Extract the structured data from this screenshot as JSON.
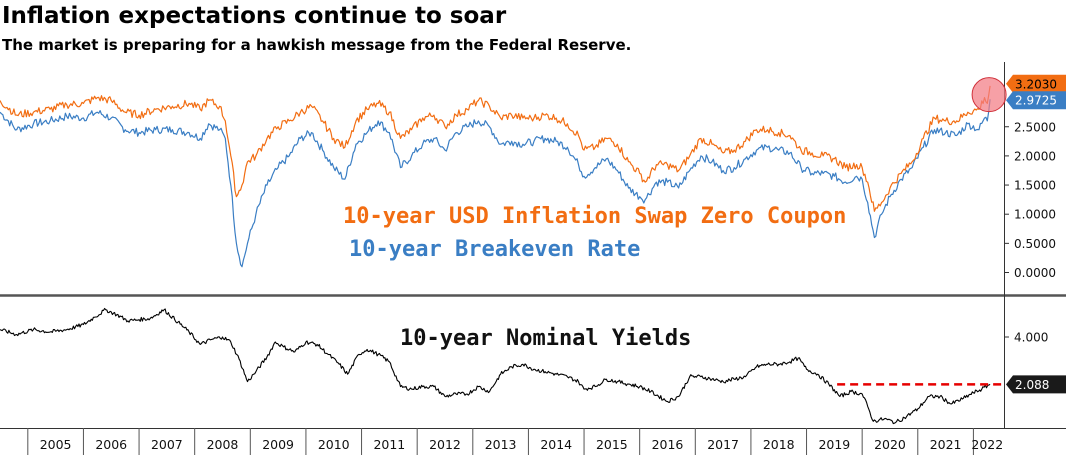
{
  "header": {
    "title": "Inflation expectations continue to soar",
    "subtitle": "The market is preparing for a hawkish message from the Federal Reserve."
  },
  "colors": {
    "swap": "#f26d12",
    "breakeven": "#3a7ec4",
    "nominal": "#000000",
    "highlight": "#f27c84",
    "dashed": "#e60000"
  },
  "chart_data": [
    {
      "type": "line",
      "panel": "upper",
      "x_range": [
        2004.5,
        2022.55
      ],
      "ylim": [
        -0.3,
        3.55
      ],
      "yticks": [
        "0.0000",
        "0.5000",
        "1.0000",
        "1.5000",
        "2.0000",
        "2.5000"
      ],
      "annotations": [
        {
          "text": "10-year USD Inflation Swap Zero Coupon",
          "color": "#f26d12"
        },
        {
          "text": "10-year Breakeven Rate",
          "color": "#3a7ec4"
        }
      ],
      "series": [
        {
          "key": "swap",
          "last_label": "3.2030",
          "points": [
            [
              2004.5,
              2.95
            ],
            [
              2004.8,
              2.7
            ],
            [
              2005.1,
              2.75
            ],
            [
              2005.4,
              2.8
            ],
            [
              2005.7,
              2.88
            ],
            [
              2006.0,
              2.9
            ],
            [
              2006.25,
              3.0
            ],
            [
              2006.5,
              2.95
            ],
            [
              2006.75,
              2.75
            ],
            [
              2007.0,
              2.7
            ],
            [
              2007.3,
              2.8
            ],
            [
              2007.6,
              2.85
            ],
            [
              2007.9,
              2.9
            ],
            [
              2008.1,
              2.8
            ],
            [
              2008.25,
              2.95
            ],
            [
              2008.45,
              2.85
            ],
            [
              2008.55,
              2.6
            ],
            [
              2008.65,
              2.0
            ],
            [
              2008.75,
              1.3
            ],
            [
              2008.85,
              1.5
            ],
            [
              2008.95,
              1.9
            ],
            [
              2009.1,
              2.0
            ],
            [
              2009.3,
              2.3
            ],
            [
              2009.5,
              2.5
            ],
            [
              2009.7,
              2.6
            ],
            [
              2009.9,
              2.75
            ],
            [
              2010.1,
              2.85
            ],
            [
              2010.3,
              2.6
            ],
            [
              2010.5,
              2.3
            ],
            [
              2010.7,
              2.15
            ],
            [
              2010.9,
              2.6
            ],
            [
              2011.1,
              2.8
            ],
            [
              2011.3,
              2.9
            ],
            [
              2011.5,
              2.75
            ],
            [
              2011.7,
              2.3
            ],
            [
              2011.9,
              2.45
            ],
            [
              2012.1,
              2.65
            ],
            [
              2012.3,
              2.7
            ],
            [
              2012.5,
              2.5
            ],
            [
              2012.7,
              2.7
            ],
            [
              2012.9,
              2.8
            ],
            [
              2013.1,
              2.95
            ],
            [
              2013.3,
              2.85
            ],
            [
              2013.5,
              2.65
            ],
            [
              2013.7,
              2.7
            ],
            [
              2013.9,
              2.65
            ],
            [
              2014.1,
              2.65
            ],
            [
              2014.3,
              2.7
            ],
            [
              2014.5,
              2.65
            ],
            [
              2014.7,
              2.55
            ],
            [
              2014.9,
              2.35
            ],
            [
              2015.0,
              2.1
            ],
            [
              2015.2,
              2.15
            ],
            [
              2015.4,
              2.3
            ],
            [
              2015.6,
              2.2
            ],
            [
              2015.8,
              1.9
            ],
            [
              2016.0,
              1.7
            ],
            [
              2016.1,
              1.55
            ],
            [
              2016.3,
              1.85
            ],
            [
              2016.5,
              1.85
            ],
            [
              2016.7,
              1.75
            ],
            [
              2016.9,
              2.0
            ],
            [
              2017.1,
              2.3
            ],
            [
              2017.3,
              2.2
            ],
            [
              2017.5,
              2.05
            ],
            [
              2017.7,
              2.1
            ],
            [
              2017.9,
              2.25
            ],
            [
              2018.1,
              2.45
            ],
            [
              2018.3,
              2.45
            ],
            [
              2018.5,
              2.4
            ],
            [
              2018.7,
              2.35
            ],
            [
              2018.9,
              2.1
            ],
            [
              2019.1,
              2.05
            ],
            [
              2019.3,
              2.0
            ],
            [
              2019.5,
              1.95
            ],
            [
              2019.7,
              1.8
            ],
            [
              2019.9,
              1.85
            ],
            [
              2020.0,
              1.8
            ],
            [
              2020.1,
              1.55
            ],
            [
              2020.22,
              1.05
            ],
            [
              2020.35,
              1.2
            ],
            [
              2020.5,
              1.45
            ],
            [
              2020.7,
              1.7
            ],
            [
              2020.9,
              1.9
            ],
            [
              2021.1,
              2.3
            ],
            [
              2021.3,
              2.65
            ],
            [
              2021.5,
              2.6
            ],
            [
              2021.7,
              2.6
            ],
            [
              2021.9,
              2.75
            ],
            [
              2022.1,
              2.8
            ],
            [
              2022.2,
              3.0
            ],
            [
              2022.25,
              2.9
            ],
            [
              2022.3,
              3.2
            ]
          ]
        },
        {
          "key": "breakeven",
          "last_label": "2.9725",
          "points": [
            [
              2004.5,
              2.75
            ],
            [
              2004.8,
              2.45
            ],
            [
              2005.1,
              2.55
            ],
            [
              2005.4,
              2.6
            ],
            [
              2005.7,
              2.68
            ],
            [
              2006.0,
              2.65
            ],
            [
              2006.25,
              2.75
            ],
            [
              2006.5,
              2.65
            ],
            [
              2006.75,
              2.45
            ],
            [
              2007.0,
              2.4
            ],
            [
              2007.3,
              2.45
            ],
            [
              2007.6,
              2.45
            ],
            [
              2007.9,
              2.4
            ],
            [
              2008.1,
              2.3
            ],
            [
              2008.25,
              2.55
            ],
            [
              2008.45,
              2.45
            ],
            [
              2008.55,
              2.3
            ],
            [
              2008.65,
              1.5
            ],
            [
              2008.75,
              0.5
            ],
            [
              2008.85,
              0.1
            ],
            [
              2008.95,
              0.5
            ],
            [
              2009.1,
              1.0
            ],
            [
              2009.3,
              1.5
            ],
            [
              2009.5,
              1.8
            ],
            [
              2009.7,
              2.0
            ],
            [
              2009.9,
              2.3
            ],
            [
              2010.1,
              2.4
            ],
            [
              2010.3,
              2.1
            ],
            [
              2010.5,
              1.8
            ],
            [
              2010.7,
              1.6
            ],
            [
              2010.9,
              2.2
            ],
            [
              2011.1,
              2.4
            ],
            [
              2011.3,
              2.6
            ],
            [
              2011.5,
              2.4
            ],
            [
              2011.7,
              1.8
            ],
            [
              2011.9,
              2.0
            ],
            [
              2012.1,
              2.2
            ],
            [
              2012.3,
              2.3
            ],
            [
              2012.5,
              2.1
            ],
            [
              2012.7,
              2.4
            ],
            [
              2012.9,
              2.5
            ],
            [
              2013.1,
              2.6
            ],
            [
              2013.3,
              2.5
            ],
            [
              2013.5,
              2.2
            ],
            [
              2013.7,
              2.25
            ],
            [
              2013.9,
              2.2
            ],
            [
              2014.1,
              2.25
            ],
            [
              2014.3,
              2.3
            ],
            [
              2014.5,
              2.25
            ],
            [
              2014.7,
              2.15
            ],
            [
              2014.9,
              1.85
            ],
            [
              2015.0,
              1.65
            ],
            [
              2015.2,
              1.8
            ],
            [
              2015.4,
              1.95
            ],
            [
              2015.6,
              1.75
            ],
            [
              2015.8,
              1.45
            ],
            [
              2016.0,
              1.3
            ],
            [
              2016.1,
              1.25
            ],
            [
              2016.3,
              1.55
            ],
            [
              2016.5,
              1.55
            ],
            [
              2016.7,
              1.45
            ],
            [
              2016.9,
              1.75
            ],
            [
              2017.1,
              2.0
            ],
            [
              2017.3,
              1.9
            ],
            [
              2017.5,
              1.75
            ],
            [
              2017.7,
              1.8
            ],
            [
              2017.9,
              1.95
            ],
            [
              2018.1,
              2.1
            ],
            [
              2018.3,
              2.15
            ],
            [
              2018.5,
              2.1
            ],
            [
              2018.7,
              2.05
            ],
            [
              2018.9,
              1.8
            ],
            [
              2019.1,
              1.7
            ],
            [
              2019.3,
              1.7
            ],
            [
              2019.5,
              1.65
            ],
            [
              2019.7,
              1.55
            ],
            [
              2019.9,
              1.65
            ],
            [
              2020.0,
              1.6
            ],
            [
              2020.1,
              1.2
            ],
            [
              2020.22,
              0.6
            ],
            [
              2020.35,
              1.0
            ],
            [
              2020.5,
              1.3
            ],
            [
              2020.7,
              1.6
            ],
            [
              2020.9,
              1.8
            ],
            [
              2021.1,
              2.15
            ],
            [
              2021.3,
              2.45
            ],
            [
              2021.5,
              2.4
            ],
            [
              2021.7,
              2.35
            ],
            [
              2021.9,
              2.55
            ],
            [
              2022.1,
              2.45
            ],
            [
              2022.2,
              2.65
            ],
            [
              2022.25,
              2.6
            ],
            [
              2022.3,
              2.97
            ]
          ]
        }
      ]
    },
    {
      "type": "line",
      "panel": "lower",
      "annotation": "10-year Nominal Yields",
      "ylim": [
        0.3,
        5.6
      ],
      "yticks": [
        "4.000"
      ],
      "last_label": "2.088",
      "dashed_level": 2.088,
      "dashed_from_x": 2019.55,
      "x_labels": [
        "2005",
        "2006",
        "2007",
        "2008",
        "2009",
        "2010",
        "2011",
        "2012",
        "2013",
        "2014",
        "2015",
        "2016",
        "2017",
        "2018",
        "2019",
        "2020",
        "2021",
        "2022"
      ],
      "points": [
        [
          2004.5,
          4.3
        ],
        [
          2004.8,
          4.1
        ],
        [
          2005.1,
          4.3
        ],
        [
          2005.4,
          4.2
        ],
        [
          2005.7,
          4.3
        ],
        [
          2006.0,
          4.5
        ],
        [
          2006.2,
          4.8
        ],
        [
          2006.4,
          5.1
        ],
        [
          2006.6,
          4.9
        ],
        [
          2006.8,
          4.65
        ],
        [
          2007.0,
          4.7
        ],
        [
          2007.2,
          4.75
        ],
        [
          2007.45,
          5.1
        ],
        [
          2007.7,
          4.6
        ],
        [
          2007.9,
          4.2
        ],
        [
          2008.1,
          3.7
        ],
        [
          2008.3,
          3.9
        ],
        [
          2008.5,
          4.0
        ],
        [
          2008.65,
          3.8
        ],
        [
          2008.8,
          3.1
        ],
        [
          2008.95,
          2.2
        ],
        [
          2009.1,
          2.6
        ],
        [
          2009.3,
          3.2
        ],
        [
          2009.45,
          3.8
        ],
        [
          2009.6,
          3.6
        ],
        [
          2009.8,
          3.4
        ],
        [
          2010.0,
          3.8
        ],
        [
          2010.2,
          3.7
        ],
        [
          2010.4,
          3.3
        ],
        [
          2010.6,
          2.9
        ],
        [
          2010.75,
          2.5
        ],
        [
          2010.95,
          3.3
        ],
        [
          2011.1,
          3.5
        ],
        [
          2011.3,
          3.3
        ],
        [
          2011.5,
          3.0
        ],
        [
          2011.7,
          2.0
        ],
        [
          2011.9,
          1.9
        ],
        [
          2012.1,
          2.0
        ],
        [
          2012.3,
          2.0
        ],
        [
          2012.5,
          1.6
        ],
        [
          2012.7,
          1.7
        ],
        [
          2012.9,
          1.7
        ],
        [
          2013.1,
          2.0
        ],
        [
          2013.3,
          1.8
        ],
        [
          2013.5,
          2.5
        ],
        [
          2013.7,
          2.8
        ],
        [
          2013.9,
          2.9
        ],
        [
          2014.1,
          2.7
        ],
        [
          2014.3,
          2.6
        ],
        [
          2014.5,
          2.5
        ],
        [
          2014.7,
          2.4
        ],
        [
          2014.9,
          2.2
        ],
        [
          2015.0,
          1.9
        ],
        [
          2015.2,
          2.0
        ],
        [
          2015.4,
          2.3
        ],
        [
          2015.6,
          2.2
        ],
        [
          2015.8,
          2.1
        ],
        [
          2016.0,
          2.0
        ],
        [
          2016.2,
          1.8
        ],
        [
          2016.5,
          1.4
        ],
        [
          2016.7,
          1.6
        ],
        [
          2016.9,
          2.4
        ],
        [
          2017.1,
          2.4
        ],
        [
          2017.3,
          2.3
        ],
        [
          2017.5,
          2.2
        ],
        [
          2017.7,
          2.3
        ],
        [
          2017.9,
          2.4
        ],
        [
          2018.1,
          2.8
        ],
        [
          2018.3,
          2.9
        ],
        [
          2018.5,
          2.9
        ],
        [
          2018.7,
          3.0
        ],
        [
          2018.85,
          3.15
        ],
        [
          2019.0,
          2.7
        ],
        [
          2019.2,
          2.5
        ],
        [
          2019.4,
          2.1
        ],
        [
          2019.6,
          1.6
        ],
        [
          2019.8,
          1.8
        ],
        [
          2020.0,
          1.7
        ],
        [
          2020.1,
          1.2
        ],
        [
          2020.2,
          0.6
        ],
        [
          2020.4,
          0.7
        ],
        [
          2020.6,
          0.55
        ],
        [
          2020.8,
          0.8
        ],
        [
          2021.0,
          1.1
        ],
        [
          2021.2,
          1.6
        ],
        [
          2021.4,
          1.6
        ],
        [
          2021.6,
          1.3
        ],
        [
          2021.8,
          1.5
        ],
        [
          2022.0,
          1.75
        ],
        [
          2022.15,
          1.9
        ],
        [
          2022.3,
          2.09
        ]
      ]
    }
  ]
}
